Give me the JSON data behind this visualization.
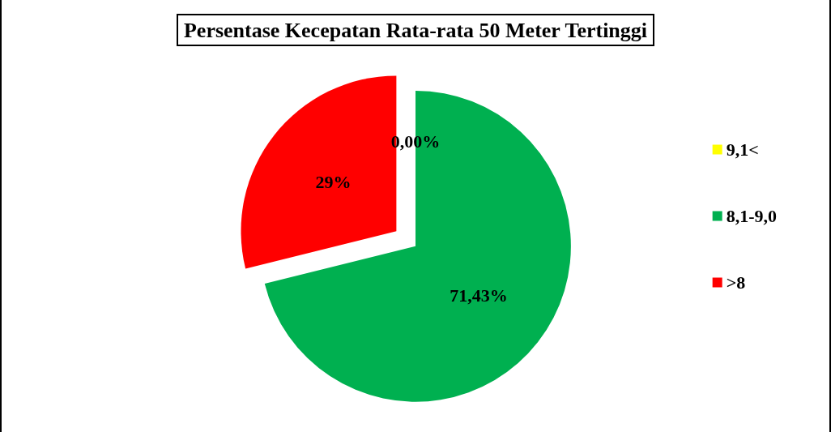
{
  "chart_data": {
    "type": "pie",
    "title": "Persentase Kecepatan Rata-rata 50 Meter Tertinggi",
    "categories": [
      "9,1<",
      "8,1-9,0",
      ">8"
    ],
    "values": [
      0,
      71.43,
      29
    ],
    "value_labels": [
      "0,00%",
      "71,43%",
      "29%"
    ],
    "colors": [
      "#ffff00",
      "#00b050",
      "#ff0000"
    ],
    "legend": "right"
  }
}
